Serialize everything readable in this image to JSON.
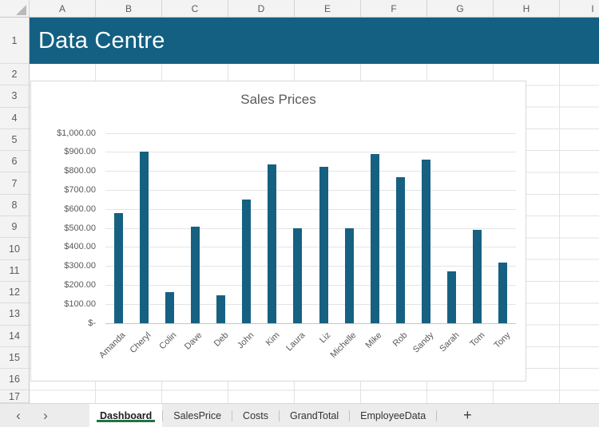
{
  "spreadsheet": {
    "column_headers": [
      "A",
      "B",
      "C",
      "D",
      "E",
      "F",
      "G",
      "H",
      "I"
    ],
    "row_headers": [
      "1",
      "2",
      "3",
      "4",
      "5",
      "6",
      "7",
      "8",
      "9",
      "10",
      "11",
      "12",
      "13",
      "14",
      "15",
      "16",
      "17"
    ],
    "banner": {
      "text": "Data Centre",
      "bg": "#136083",
      "fg": "#ffffff"
    }
  },
  "chart_data": {
    "type": "bar",
    "title": "Sales Prices",
    "categories": [
      "Amanda",
      "Cheryl",
      "Colin",
      "Dave",
      "Deb",
      "John",
      "Kim",
      "Laura",
      "Liz",
      "Michelle",
      "Mike",
      "Rob",
      "Sandy",
      "Sarah",
      "Tom",
      "Tony"
    ],
    "values": [
      580,
      905,
      165,
      510,
      145,
      650,
      835,
      500,
      825,
      500,
      890,
      770,
      860,
      275,
      490,
      320
    ],
    "xlabel": "",
    "ylabel": "",
    "ylim": [
      0,
      1000
    ],
    "ytick_step": 100,
    "ytick_labels": [
      "$-",
      "$100.00",
      "$200.00",
      "$300.00",
      "$400.00",
      "$500.00",
      "$600.00",
      "$700.00",
      "$800.00",
      "$900.00",
      "$1,000.00"
    ],
    "grid": true,
    "legend": "none",
    "bar_color": "#166181"
  },
  "sheet_tabs": {
    "active": "Dashboard",
    "tabs": [
      "Dashboard",
      "SalesPrice",
      "Costs",
      "GrandTotal",
      "EmployeeData"
    ],
    "add_label": "+",
    "nav_prev": "‹",
    "nav_next": "›",
    "active_underline_color": "#217346"
  }
}
